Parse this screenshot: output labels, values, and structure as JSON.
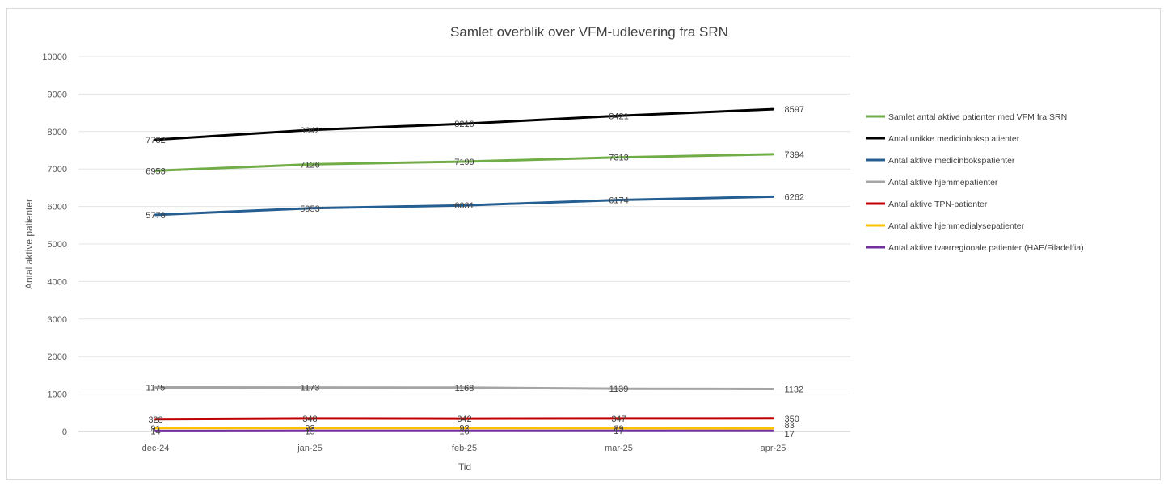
{
  "chart_data": {
    "type": "line",
    "title": "Samlet overblik over VFM-udlevering fra SRN",
    "xlabel": "Tid",
    "ylabel": "Antal aktive patienter",
    "categories": [
      "dec-24",
      "jan-25",
      "feb-25",
      "mar-25",
      "apr-25"
    ],
    "ylim": [
      0,
      10000
    ],
    "yticks": [
      0,
      1000,
      2000,
      3000,
      4000,
      5000,
      6000,
      7000,
      8000,
      9000,
      10000
    ],
    "grid": true,
    "legend_position": "right",
    "series": [
      {
        "name": "Samlet antal aktive patienter med VFM fra SRN",
        "color": "#70ad47",
        "values": [
          6953,
          7126,
          7199,
          7313,
          7394
        ],
        "labels": [
          "6953",
          "7126",
          "7199",
          "7313",
          "7394"
        ]
      },
      {
        "name": "Antal unikke medicinboksp atienter",
        "color": "#000000",
        "values": [
          7782,
          8042,
          8210,
          8421,
          8597
        ],
        "labels": [
          "7782",
          "8042",
          "8210",
          "8421",
          "8597"
        ]
      },
      {
        "name": "Antal aktive medicinbokspatienter",
        "color": "#255e91",
        "values": [
          5778,
          5953,
          6031,
          6174,
          6262
        ],
        "labels": [
          "5778",
          "5953",
          "6031",
          "6174",
          "6262"
        ]
      },
      {
        "name": "Antal aktive hjemmepatienter",
        "color": "#a5a5a5",
        "values": [
          1175,
          1173,
          1168,
          1139,
          1132
        ],
        "labels": [
          "1175",
          "1173",
          "1168",
          "1139",
          "1132"
        ]
      },
      {
        "name": "Antal aktive TPN-patienter",
        "color": "#c00000",
        "values": [
          328,
          348,
          342,
          347,
          350
        ],
        "labels": [
          "328",
          "348",
          "342",
          "347",
          "350"
        ]
      },
      {
        "name": "Antal aktive hjemmedialysepatienter",
        "color": "#ffc000",
        "values": [
          91,
          93,
          92,
          89,
          83
        ],
        "labels": [
          "91",
          "93",
          "92",
          "89",
          "83"
        ]
      },
      {
        "name": "Antal aktive tværregionale patienter (HAE/Filadelfia)",
        "color": "#7030a0",
        "values": [
          14,
          15,
          16,
          17,
          17
        ],
        "labels": [
          "14",
          "15",
          "16",
          "17",
          "17"
        ]
      }
    ]
  }
}
